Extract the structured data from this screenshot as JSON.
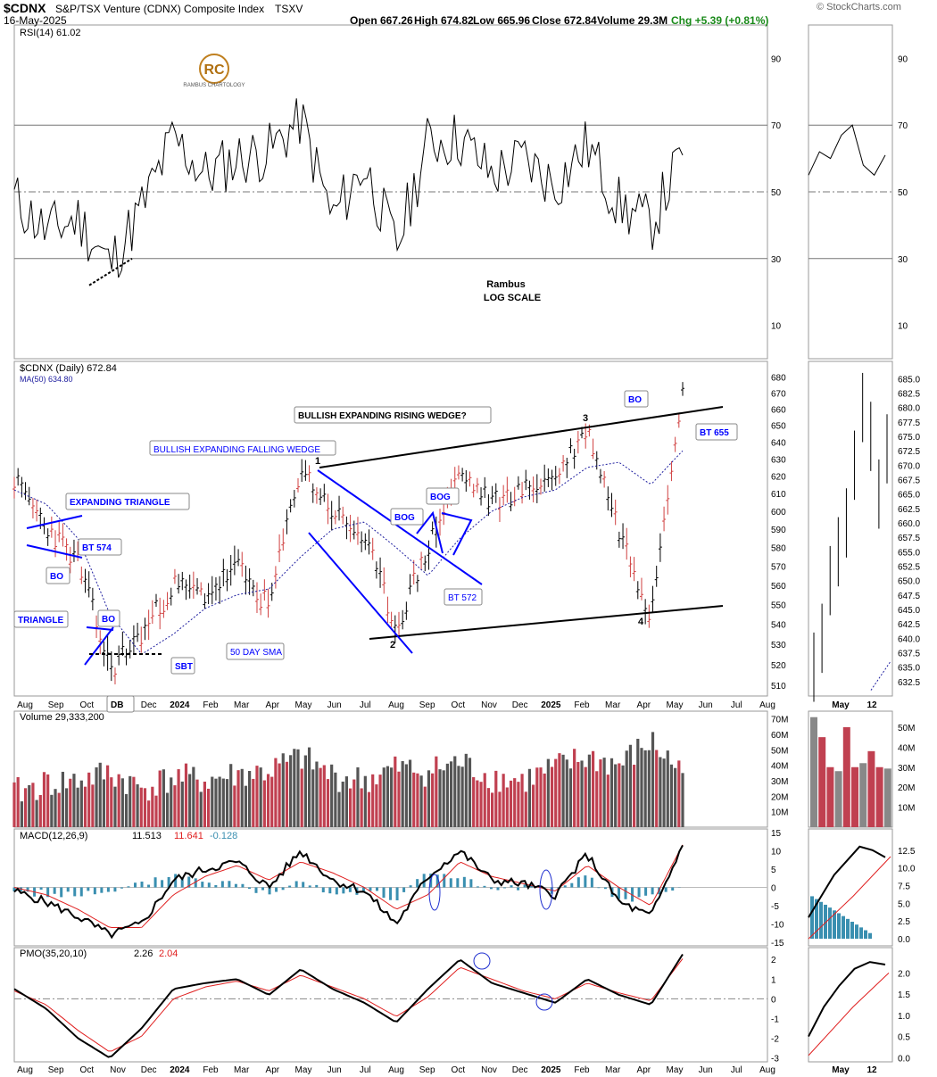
{
  "header": {
    "symbol": "$CDNX",
    "name": "S&P/TSX Venture (CDNX) Composite Index",
    "exchange": "TSXV",
    "date": "16-May-2025",
    "open": "Open 667.26",
    "high": "High 674.82",
    "low": "Low 665.96",
    "close": "Close 672.84",
    "volume": "Volume 29.3M",
    "change": "Chg +5.39 (+0.81%)",
    "watermark": "© StockCharts.com",
    "logo_text": "RAMBUS CHARTOLOGY",
    "colors": {
      "change": "#1a8a1a",
      "up_candle": "#000000",
      "down_candle": "#d04040",
      "pattern": "#0000ff"
    }
  },
  "chart_data": [
    {
      "type": "line",
      "panel": "RSI",
      "label": "RSI(14) 61.02",
      "ylim": [
        0,
        100
      ],
      "yticks": [
        10,
        30,
        50,
        70,
        90
      ],
      "reference_lines": [
        30,
        50,
        70
      ],
      "x": [
        "2023-08",
        "2023-09",
        "2023-10",
        "2023-11",
        "2023-12",
        "2024-01",
        "2024-02",
        "2024-03",
        "2024-04",
        "2024-05",
        "2024-06",
        "2024-07",
        "2024-08",
        "2024-09",
        "2024-10",
        "2024-11",
        "2024-12",
        "2025-01",
        "2025-02",
        "2025-03",
        "2025-04",
        "2025-05"
      ],
      "values": [
        48,
        38,
        42,
        28,
        45,
        66,
        55,
        60,
        62,
        72,
        42,
        58,
        33,
        65,
        66,
        55,
        60,
        52,
        64,
        46,
        40,
        61
      ],
      "inset_values": [
        55,
        62,
        60,
        67,
        70,
        58,
        55,
        61
      ],
      "annotations": [
        "Rambus",
        "LOG SCALE"
      ]
    },
    {
      "type": "line",
      "panel": "price",
      "label": "$CDNX (Daily) 672.84",
      "ma_label": "MA(50) 634.80",
      "scale": "log",
      "ylim": [
        505,
        690
      ],
      "yticks": [
        510,
        520,
        530,
        540,
        550,
        560,
        570,
        580,
        590,
        600,
        610,
        620,
        630,
        640,
        650,
        660,
        670,
        680
      ],
      "x_ticks": [
        "Aug",
        "Sep",
        "Oct",
        "Nov",
        "Dec",
        "2024",
        "Feb",
        "Mar",
        "Apr",
        "May",
        "Jun",
        "Jul",
        "Aug",
        "Sep",
        "Oct",
        "Nov",
        "Dec",
        "2025",
        "Feb",
        "Mar",
        "Apr",
        "May",
        "Jun",
        "Jul",
        "Aug"
      ],
      "x": [
        "2023-08",
        "2023-09",
        "2023-10",
        "2023-11",
        "2023-12",
        "2024-01",
        "2024-02",
        "2024-03",
        "2024-04",
        "2024-05",
        "2024-06",
        "2024-07",
        "2024-08",
        "2024-09",
        "2024-10",
        "2024-11",
        "2024-12",
        "2025-01",
        "2025-02",
        "2025-03",
        "2025-04",
        "2025-05"
      ],
      "series": [
        {
          "name": "$CDNX",
          "values": [
            618,
            592,
            572,
            518,
            535,
            560,
            555,
            570,
            548,
            625,
            600,
            585,
            538,
            580,
            622,
            605,
            612,
            620,
            648,
            590,
            545,
            672.84
          ]
        },
        {
          "name": "MA(50)",
          "values": [
            612,
            604,
            585,
            545,
            525,
            535,
            548,
            555,
            558,
            575,
            590,
            594,
            580,
            565,
            585,
            600,
            608,
            612,
            625,
            628,
            615,
            634.8
          ]
        }
      ],
      "inset_yticks": [
        632.5,
        635.0,
        637.5,
        640.0,
        642.5,
        645.0,
        647.5,
        650.0,
        652.5,
        655.0,
        657.5,
        660.0,
        662.5,
        665.0,
        667.5,
        670.0,
        672.5,
        675.0,
        677.5,
        680.0,
        682.5,
        685.0
      ],
      "inset_x_ticks": [
        "May",
        "12"
      ],
      "inset_values": [
        635,
        640,
        650,
        655,
        660,
        670,
        680,
        675,
        665,
        672.84
      ],
      "annotations": [
        "BULLISH EXPANDING RISING WEDGE?",
        "BULLISH EXPANDING FALLING WEDGE",
        "EXPANDING TRIANGLE",
        "BT 574",
        "BO",
        "TRIANGLE",
        "BO",
        "SBT",
        "DB",
        "50 DAY SMA",
        "BOG",
        "BOG",
        "BT 572",
        "BO",
        "BT 655",
        "1",
        "2",
        "3",
        "4"
      ]
    },
    {
      "type": "bar",
      "panel": "volume",
      "label": "Volume 29,333,200",
      "ylim": [
        0,
        75
      ],
      "yticks": [
        "10M",
        "20M",
        "30M",
        "40M",
        "50M",
        "60M",
        "70M"
      ],
      "x": [
        "2023-08",
        "2023-09",
        "2023-10",
        "2023-11",
        "2023-12",
        "2024-01",
        "2024-02",
        "2024-03",
        "2024-04",
        "2024-05",
        "2024-06",
        "2024-07",
        "2024-08",
        "2024-09",
        "2024-10",
        "2024-11",
        "2024-12",
        "2025-01",
        "2025-02",
        "2025-03",
        "2025-04",
        "2025-05"
      ],
      "values": [
        22,
        28,
        30,
        35,
        25,
        32,
        30,
        34,
        36,
        45,
        33,
        30,
        38,
        36,
        42,
        32,
        30,
        38,
        45,
        40,
        55,
        35
      ],
      "inset_yticks": [
        "10M",
        "20M",
        "30M",
        "40M",
        "50M"
      ],
      "inset_values": [
        55,
        45,
        30,
        28,
        50,
        30,
        32,
        38,
        30,
        29.3
      ]
    },
    {
      "type": "line",
      "panel": "MACD",
      "label": "MACD(12,26,9)",
      "legend": [
        "11.513",
        "11.641",
        "-0.128"
      ],
      "ylim": [
        -16,
        16
      ],
      "yticks": [
        -15,
        -10,
        -5,
        0,
        5,
        10,
        15
      ],
      "x": [
        "2023-08",
        "2023-09",
        "2023-10",
        "2023-11",
        "2023-12",
        "2024-01",
        "2024-02",
        "2024-03",
        "2024-04",
        "2024-05",
        "2024-06",
        "2024-07",
        "2024-08",
        "2024-09",
        "2024-10",
        "2024-11",
        "2024-12",
        "2025-01",
        "2025-02",
        "2025-03",
        "2025-04",
        "2025-05"
      ],
      "series": [
        {
          "name": "MACD",
          "values": [
            -1,
            -4,
            -8,
            -13,
            -10,
            2,
            5,
            7,
            0,
            10,
            2,
            -1,
            -10,
            3,
            10,
            2,
            1,
            -2,
            9,
            -4,
            -8,
            11.513
          ]
        },
        {
          "name": "Signal",
          "values": [
            0,
            -2,
            -6,
            -11,
            -11,
            -2,
            3,
            6,
            2,
            7,
            4,
            0,
            -6,
            -2,
            7,
            3,
            1,
            -1,
            6,
            0,
            -5,
            11.641
          ]
        }
      ],
      "inset_yticks": [
        0.0,
        2.5,
        5.0,
        7.5,
        10.0,
        12.5
      ],
      "inset_values": [
        3,
        6,
        9,
        11,
        13,
        12.5,
        11.5
      ]
    },
    {
      "type": "line",
      "panel": "PMO",
      "label": "PMO(35,20,10)",
      "legend": [
        "2.26",
        "2.04"
      ],
      "ylim": [
        -3.2,
        2.6
      ],
      "yticks": [
        -3,
        -2,
        -1,
        0,
        1,
        2
      ],
      "x_ticks": [
        "Aug",
        "Sep",
        "Oct",
        "Nov",
        "Dec",
        "2024",
        "Feb",
        "Mar",
        "Apr",
        "May",
        "Jun",
        "Jul",
        "Aug",
        "Sep",
        "Oct",
        "Nov",
        "Dec",
        "2025",
        "Feb",
        "Mar",
        "Apr",
        "May",
        "Jun",
        "Jul",
        "Aug"
      ],
      "x": [
        "2023-08",
        "2023-09",
        "2023-10",
        "2023-11",
        "2023-12",
        "2024-01",
        "2024-02",
        "2024-03",
        "2024-04",
        "2024-05",
        "2024-06",
        "2024-07",
        "2024-08",
        "2024-09",
        "2024-10",
        "2024-11",
        "2024-12",
        "2025-01",
        "2025-02",
        "2025-03",
        "2025-04",
        "2025-05"
      ],
      "series": [
        {
          "name": "PMO",
          "values": [
            0.5,
            -0.5,
            -2.0,
            -3.0,
            -1.5,
            0.5,
            0.8,
            1.0,
            0.2,
            1.5,
            0.5,
            -0.2,
            -1.2,
            0.5,
            2.0,
            0.8,
            0.3,
            -0.2,
            1.0,
            0.2,
            -0.3,
            2.26
          ]
        },
        {
          "name": "Signal",
          "values": [
            0.4,
            -0.3,
            -1.6,
            -2.7,
            -1.9,
            0.0,
            0.6,
            0.9,
            0.4,
            1.2,
            0.6,
            0.0,
            -0.9,
            0.1,
            1.6,
            1.0,
            0.4,
            0.0,
            0.8,
            0.3,
            -0.1,
            2.04
          ]
        }
      ],
      "inset_yticks": [
        0.0,
        0.5,
        1.0,
        1.5,
        2.0
      ],
      "inset_x_ticks": [
        "May",
        "12"
      ],
      "inset_values": [
        0.5,
        1.2,
        1.7,
        2.1,
        2.26,
        2.2
      ]
    }
  ]
}
